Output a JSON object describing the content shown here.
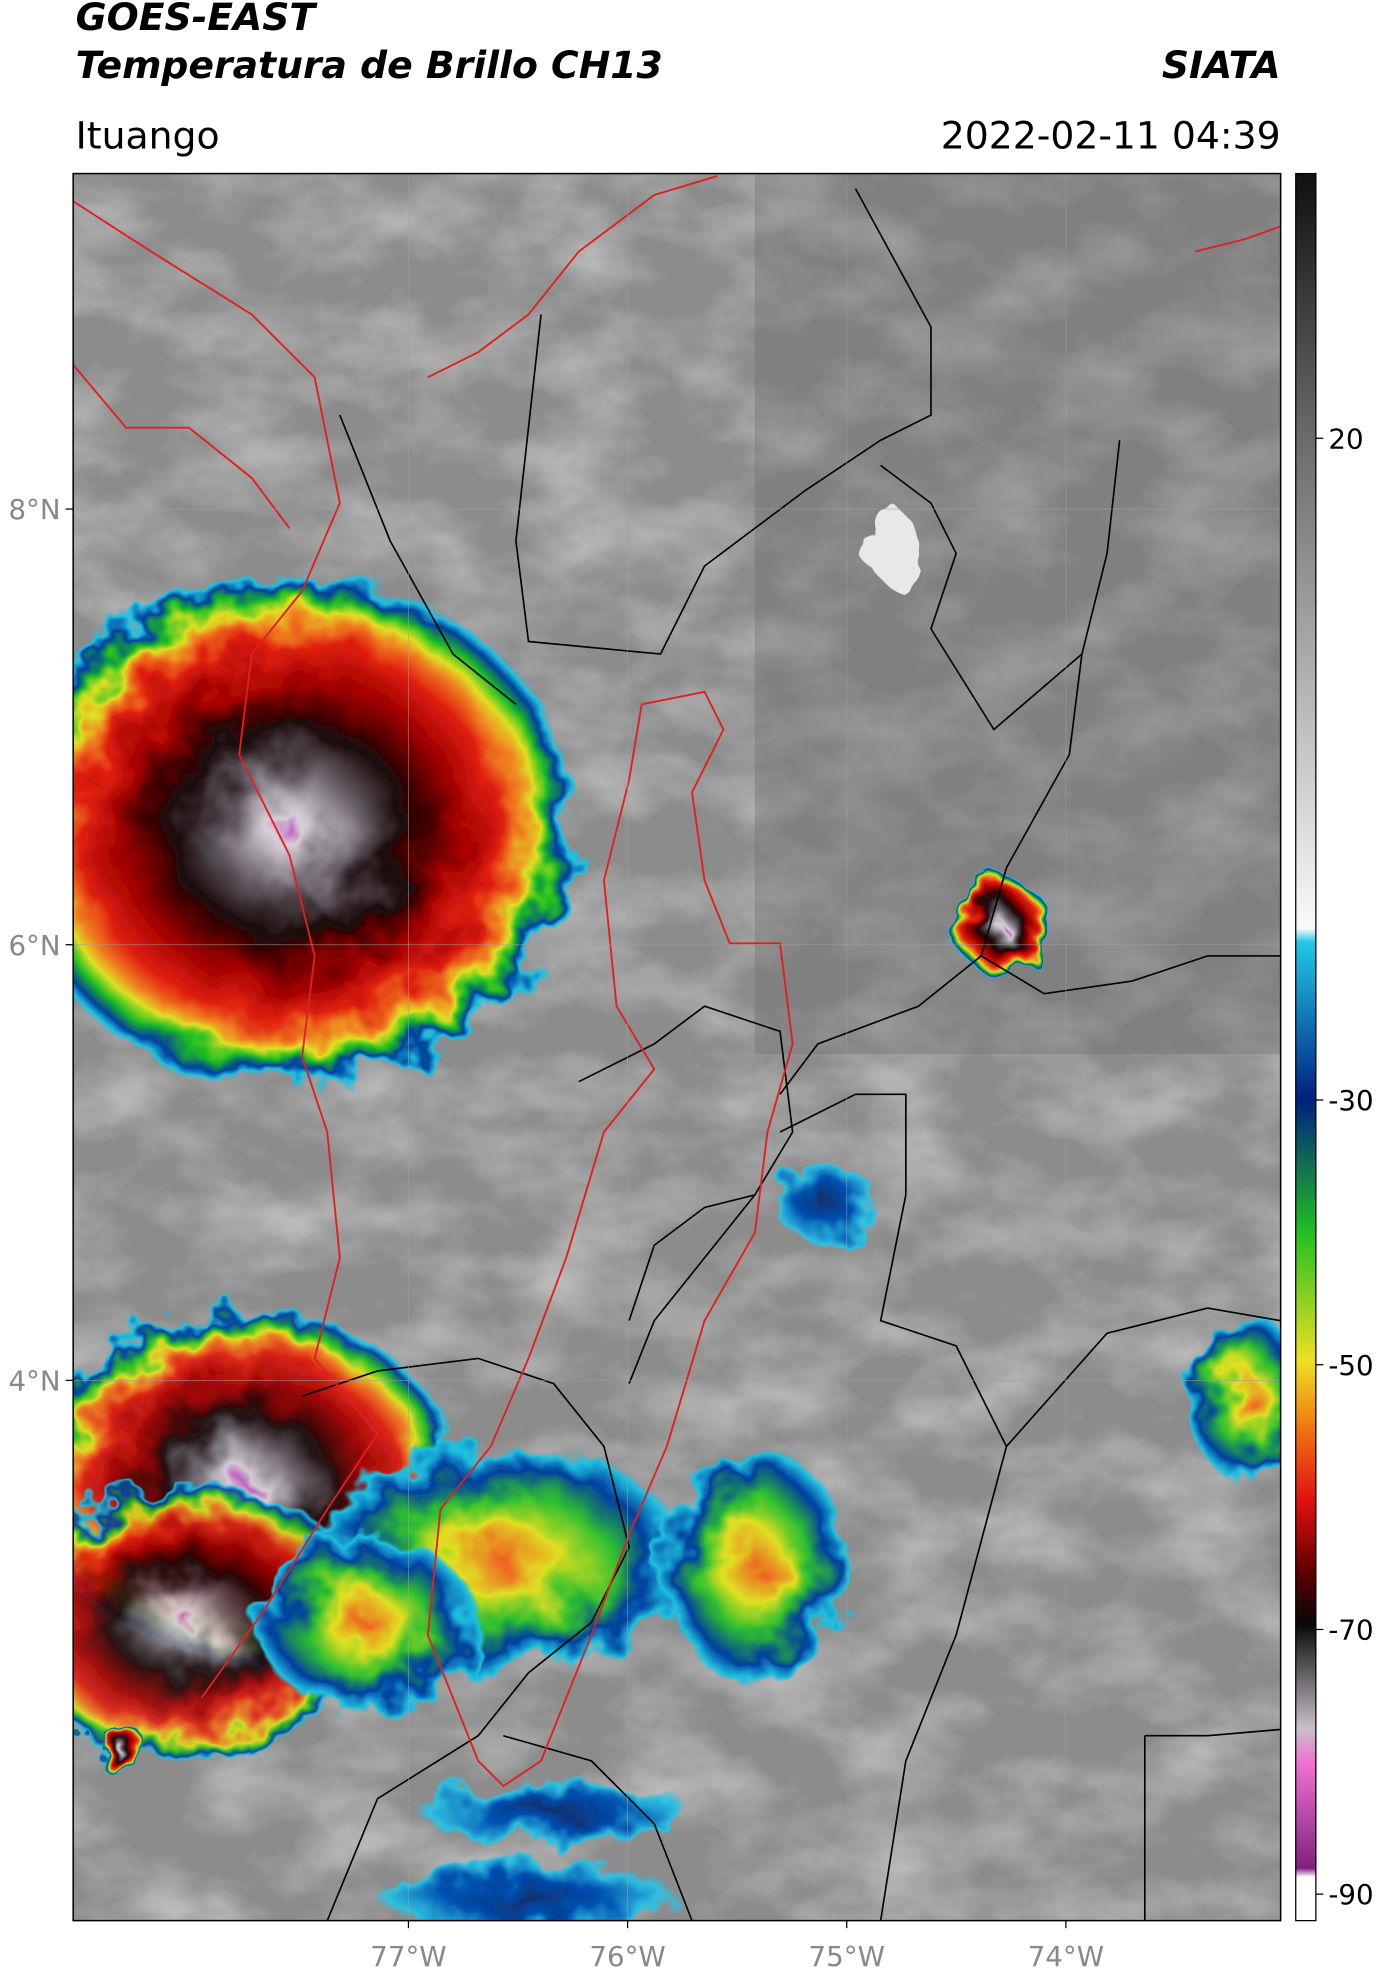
{
  "header": {
    "title": "GOES-EAST",
    "subtitle": "Temperatura de Brillo CH13",
    "brand": "SIATA",
    "location": "Ituango",
    "datetime": "2022-02-11 04:39"
  },
  "map": {
    "lon_range": [
      -78.53,
      -73.02
    ],
    "lat_range": [
      1.52,
      9.54
    ],
    "lon_ticks": [
      {
        "value": -77,
        "label": "77°W"
      },
      {
        "value": -76,
        "label": "76°W"
      },
      {
        "value": -75,
        "label": "75°W"
      },
      {
        "value": -74,
        "label": "74°W"
      }
    ],
    "lat_ticks": [
      {
        "value": 8,
        "label": "8°N"
      },
      {
        "value": 6,
        "label": "6°N"
      },
      {
        "value": 4,
        "label": "4°N"
      }
    ]
  },
  "colorbar": {
    "range": [
      -92,
      40
    ],
    "ticks": [
      20,
      -30,
      -50,
      -70,
      -90
    ]
  }
}
